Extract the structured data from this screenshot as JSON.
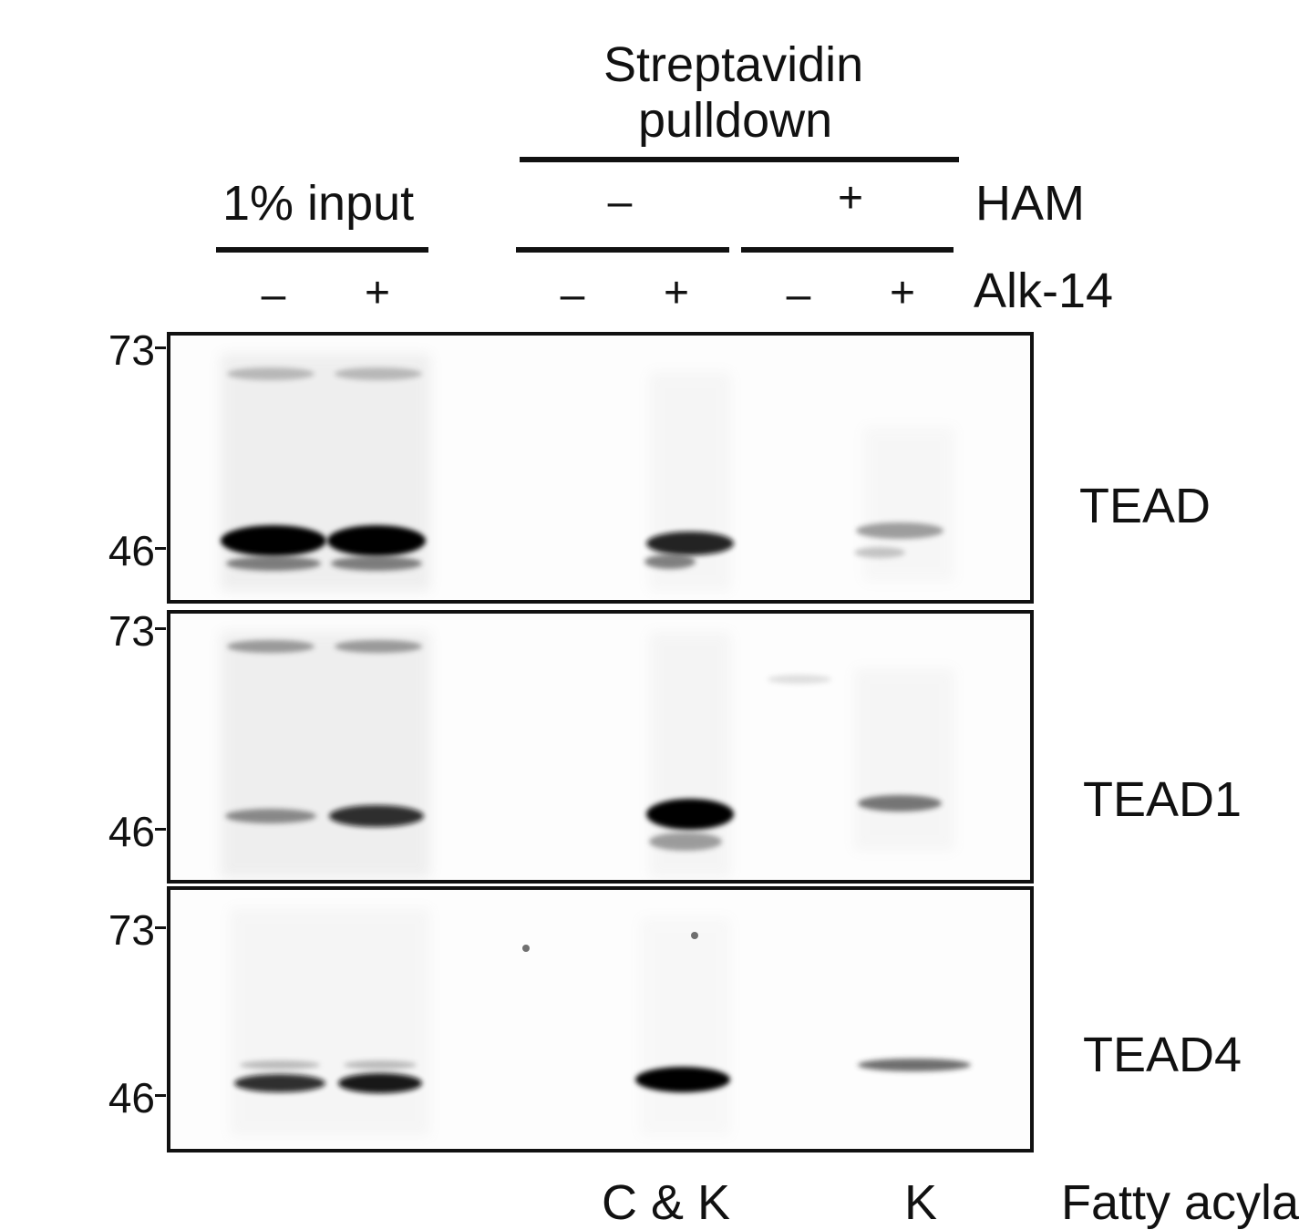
{
  "header": {
    "group_pulldown": "Streptavidin",
    "group_pulldown_line2": "pulldown",
    "group_input": "1% input",
    "ham_label": "HAM",
    "ham_minus": "–",
    "ham_plus": "+",
    "alk_label": "Alk-14",
    "alk_signs": [
      "–",
      "+",
      "–",
      "+",
      "–",
      "+"
    ]
  },
  "panels": [
    {
      "label": "TEAD",
      "mw_top": "73",
      "mw_bottom": "46"
    },
    {
      "label": "TEAD1",
      "mw_top": "73",
      "mw_bottom": "46"
    },
    {
      "label": "TEAD4",
      "mw_top": "73",
      "mw_bottom": "46"
    }
  ],
  "footer": {
    "ck": "C & K",
    "k": "K",
    "fatty": "Fatty acyla"
  }
}
